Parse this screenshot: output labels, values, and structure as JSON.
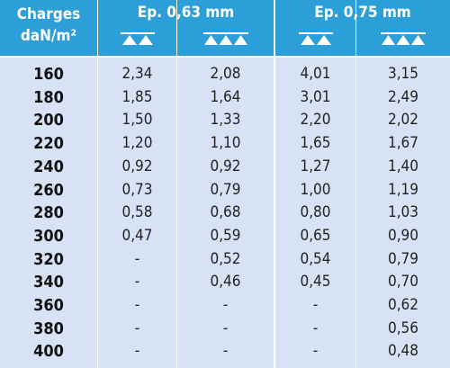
{
  "header": {
    "charges_line1": "Charges",
    "charges_line2": "daN/m²",
    "groups": [
      {
        "label": "Ep. 0,63 mm"
      },
      {
        "label": "Ep. 0,75 mm"
      }
    ],
    "supports": [
      "2-supports-icon",
      "3-supports-icon",
      "2-supports-icon",
      "3-supports-icon"
    ]
  },
  "rows": [
    {
      "load": "160",
      "v": [
        "2,34",
        "2,08",
        "4,01",
        "3,15"
      ]
    },
    {
      "load": "180",
      "v": [
        "1,85",
        "1,64",
        "3,01",
        "2,49"
      ]
    },
    {
      "load": "200",
      "v": [
        "1,50",
        "1,33",
        "2,20",
        "2,02"
      ]
    },
    {
      "load": "220",
      "v": [
        "1,20",
        "1,10",
        "1,65",
        "1,67"
      ]
    },
    {
      "load": "240",
      "v": [
        "0,92",
        "0,92",
        "1,27",
        "1,40"
      ]
    },
    {
      "load": "260",
      "v": [
        "0,73",
        "0,79",
        "1,00",
        "1,19"
      ]
    },
    {
      "load": "280",
      "v": [
        "0,58",
        "0,68",
        "0,80",
        "1,03"
      ]
    },
    {
      "load": "300",
      "v": [
        "0,47",
        "0,59",
        "0,65",
        "0,90"
      ]
    },
    {
      "load": "320",
      "v": [
        "-",
        "0,52",
        "0,54",
        "0,79"
      ]
    },
    {
      "load": "340",
      "v": [
        "-",
        "0,46",
        "0,45",
        "0,70"
      ]
    },
    {
      "load": "360",
      "v": [
        "-",
        "-",
        "-",
        "0,62"
      ]
    },
    {
      "load": "380",
      "v": [
        "-",
        "-",
        "-",
        "0,56"
      ]
    },
    {
      "load": "400",
      "v": [
        "-",
        "-",
        "-",
        "0,48"
      ]
    }
  ],
  "colors": {
    "header": "#2d9fd8",
    "body": "#d7e2f5",
    "separator": "#ffffff"
  }
}
